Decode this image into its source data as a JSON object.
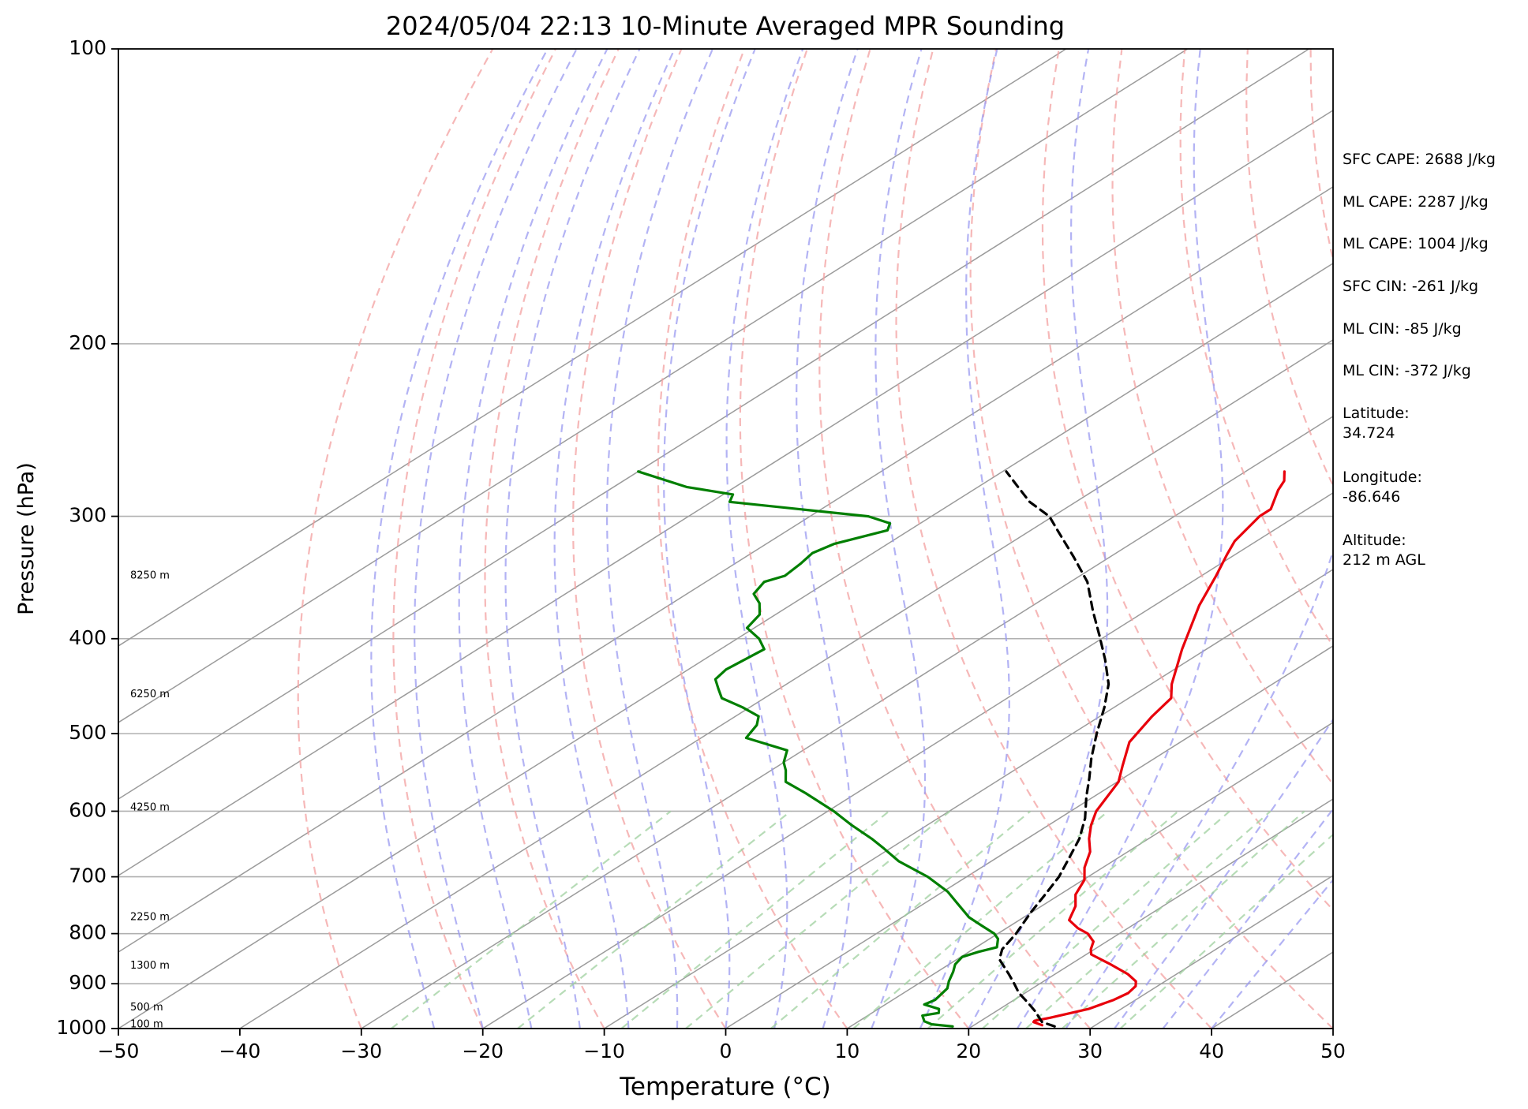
{
  "chart_data": {
    "type": "line",
    "title": "2024/05/04 22:13 10-Minute Averaged MPR Sounding",
    "xlabel": "Temperature (°C)",
    "ylabel": "Pressure (hPa)",
    "xlim": [
      -50,
      50
    ],
    "ylim": [
      1000,
      100
    ],
    "y_scale": "log",
    "x_ticks": [
      "−50",
      "−40",
      "−30",
      "−20",
      "−10",
      "0",
      "10",
      "20",
      "30",
      "40",
      "50"
    ],
    "y_ticks": [
      "100",
      "200",
      "300",
      "400",
      "500",
      "600",
      "700",
      "800",
      "900",
      "1000"
    ],
    "y_tick_values": [
      100,
      200,
      300,
      400,
      500,
      600,
      700,
      800,
      900,
      1000
    ],
    "grid": true,
    "skew_t": true,
    "height_labels": [
      {
        "p": 345,
        "text": "8250 m"
      },
      {
        "p": 456,
        "text": "6250 m"
      },
      {
        "p": 595,
        "text": "4250 m"
      },
      {
        "p": 770,
        "text": "2250 m"
      },
      {
        "p": 863,
        "text": "1300 m"
      },
      {
        "p": 952,
        "text": "500 m"
      },
      {
        "p": 991,
        "text": "100 m"
      }
    ],
    "colors": {
      "temperature": "#e8000b",
      "dewpoint": "#007f00",
      "parcel": "#000000",
      "isotherm": "#9b9b9b",
      "dry_adiabat": "#f3a0a0",
      "moist_adiabat": "#9a9af0",
      "mixing_ratio": "#9fd09f"
    },
    "series": [
      {
        "key": "temperature",
        "points": [
          [
            25.6,
            992
          ],
          [
            24.5,
            985
          ],
          [
            24.4,
            982
          ],
          [
            25.3,
            975
          ],
          [
            27.3,
            955
          ],
          [
            28.2,
            935
          ],
          [
            28.5,
            920
          ],
          [
            28.2,
            905
          ],
          [
            27.6,
            895
          ],
          [
            26.0,
            880
          ],
          [
            23.3,
            860
          ],
          [
            20.4,
            840
          ],
          [
            19.7,
            830
          ],
          [
            18.9,
            815
          ],
          [
            17.4,
            800
          ],
          [
            15.9,
            790
          ],
          [
            14.1,
            775
          ],
          [
            12.8,
            750
          ],
          [
            11.3,
            730
          ],
          [
            10.1,
            705
          ],
          [
            8.5,
            685
          ],
          [
            6.9,
            660
          ],
          [
            5.1,
            640
          ],
          [
            3.5,
            620
          ],
          [
            2.1,
            600
          ],
          [
            0.1,
            560
          ],
          [
            -1.6,
            540
          ],
          [
            -4.2,
            510
          ],
          [
            -5.7,
            480
          ],
          [
            -6.5,
            460
          ],
          [
            -8.3,
            445
          ],
          [
            -12.0,
            410
          ],
          [
            -16.3,
            370
          ],
          [
            -18.8,
            345
          ],
          [
            -20.7,
            328
          ],
          [
            -21.8,
            318
          ],
          [
            -23.0,
            300
          ],
          [
            -23.0,
            295
          ],
          [
            -24.9,
            282
          ],
          [
            -25.6,
            276
          ],
          [
            -26.8,
            270
          ]
        ]
      },
      {
        "key": "dewpoint",
        "points": [
          [
            18.4,
            995
          ],
          [
            16.4,
            990
          ],
          [
            15.4,
            983
          ],
          [
            14.5,
            970
          ],
          [
            15.5,
            964
          ],
          [
            15.0,
            955
          ],
          [
            13.2,
            945
          ],
          [
            13.5,
            935
          ],
          [
            13.0,
            910
          ],
          [
            12.2,
            895
          ],
          [
            11.3,
            875
          ],
          [
            10.5,
            860
          ],
          [
            10.1,
            845
          ],
          [
            10.8,
            835
          ],
          [
            11.7,
            826
          ],
          [
            10.7,
            810
          ],
          [
            9.7,
            800
          ],
          [
            7.6,
            785
          ],
          [
            5.5,
            770
          ],
          [
            2.7,
            745
          ],
          [
            0.4,
            725
          ],
          [
            -3.2,
            700
          ],
          [
            -7.6,
            675
          ],
          [
            -10.5,
            655
          ],
          [
            -12.8,
            640
          ],
          [
            -16.2,
            620
          ],
          [
            -19.5,
            600
          ],
          [
            -24.2,
            575
          ],
          [
            -27.3,
            560
          ],
          [
            -28.8,
            545
          ],
          [
            -30.0,
            535
          ],
          [
            -31.3,
            520
          ],
          [
            -36.3,
            505
          ],
          [
            -37.1,
            490
          ],
          [
            -38.1,
            480
          ],
          [
            -40.6,
            470
          ],
          [
            -43.5,
            460
          ],
          [
            -45.0,
            450
          ],
          [
            -46.5,
            440
          ],
          [
            -46.9,
            430
          ],
          [
            -46.4,
            410
          ],
          [
            -48.2,
            400
          ],
          [
            -50.6,
            390
          ],
          [
            -51.3,
            378
          ],
          [
            -52.8,
            368
          ],
          [
            -54.5,
            360
          ],
          [
            -55.2,
            350
          ],
          [
            -54.3,
            345
          ],
          [
            -54.6,
            335
          ],
          [
            -55.0,
            327
          ],
          [
            -54.4,
            320
          ],
          [
            -51.8,
            310
          ],
          [
            -52.5,
            305
          ],
          [
            -55.2,
            300
          ],
          [
            -68.5,
            290
          ],
          [
            -69.2,
            285
          ],
          [
            -74.0,
            280
          ],
          [
            -80.0,
            270
          ]
        ]
      },
      {
        "key": "parcel",
        "dashed": true,
        "points": [
          [
            26.8,
            995
          ],
          [
            25.2,
            985
          ],
          [
            23.2,
            960
          ],
          [
            21.4,
            940
          ],
          [
            19.5,
            920
          ],
          [
            17.9,
            900
          ],
          [
            16.2,
            880
          ],
          [
            13.5,
            850
          ],
          [
            12.4,
            830
          ],
          [
            11.5,
            800
          ],
          [
            10.7,
            780
          ],
          [
            9.9,
            760
          ],
          [
            8.8,
            730
          ],
          [
            7.6,
            700
          ],
          [
            6.0,
            670
          ],
          [
            4.3,
            640
          ],
          [
            2.1,
            610
          ],
          [
            -0.6,
            580
          ],
          [
            -2.8,
            555
          ],
          [
            -5.2,
            530
          ],
          [
            -8.0,
            500
          ],
          [
            -10.8,
            470
          ],
          [
            -13.5,
            445
          ],
          [
            -17.0,
            420
          ],
          [
            -20.6,
            397
          ],
          [
            -24.3,
            375
          ],
          [
            -28.6,
            350
          ],
          [
            -33.0,
            330
          ],
          [
            -37.8,
            310
          ],
          [
            -40.3,
            300
          ],
          [
            -43.8,
            290
          ],
          [
            -47.3,
            278
          ],
          [
            -49.7,
            270
          ]
        ]
      }
    ]
  },
  "side_panel": {
    "sfc_cape": "SFC CAPE: 2688 J/kg",
    "ml_cape_1": "ML CAPE: 2287 J/kg",
    "ml_cape_2": "ML CAPE: 1004 J/kg",
    "sfc_cin": "SFC CIN: -261 J/kg",
    "ml_cin_1": "ML CIN: -85 J/kg",
    "ml_cin_2": "ML CIN: -372 J/kg",
    "latitude": "Latitude:\n34.724",
    "longitude": "Longitude:\n-86.646",
    "altitude": "Altitude:\n212 m AGL"
  }
}
